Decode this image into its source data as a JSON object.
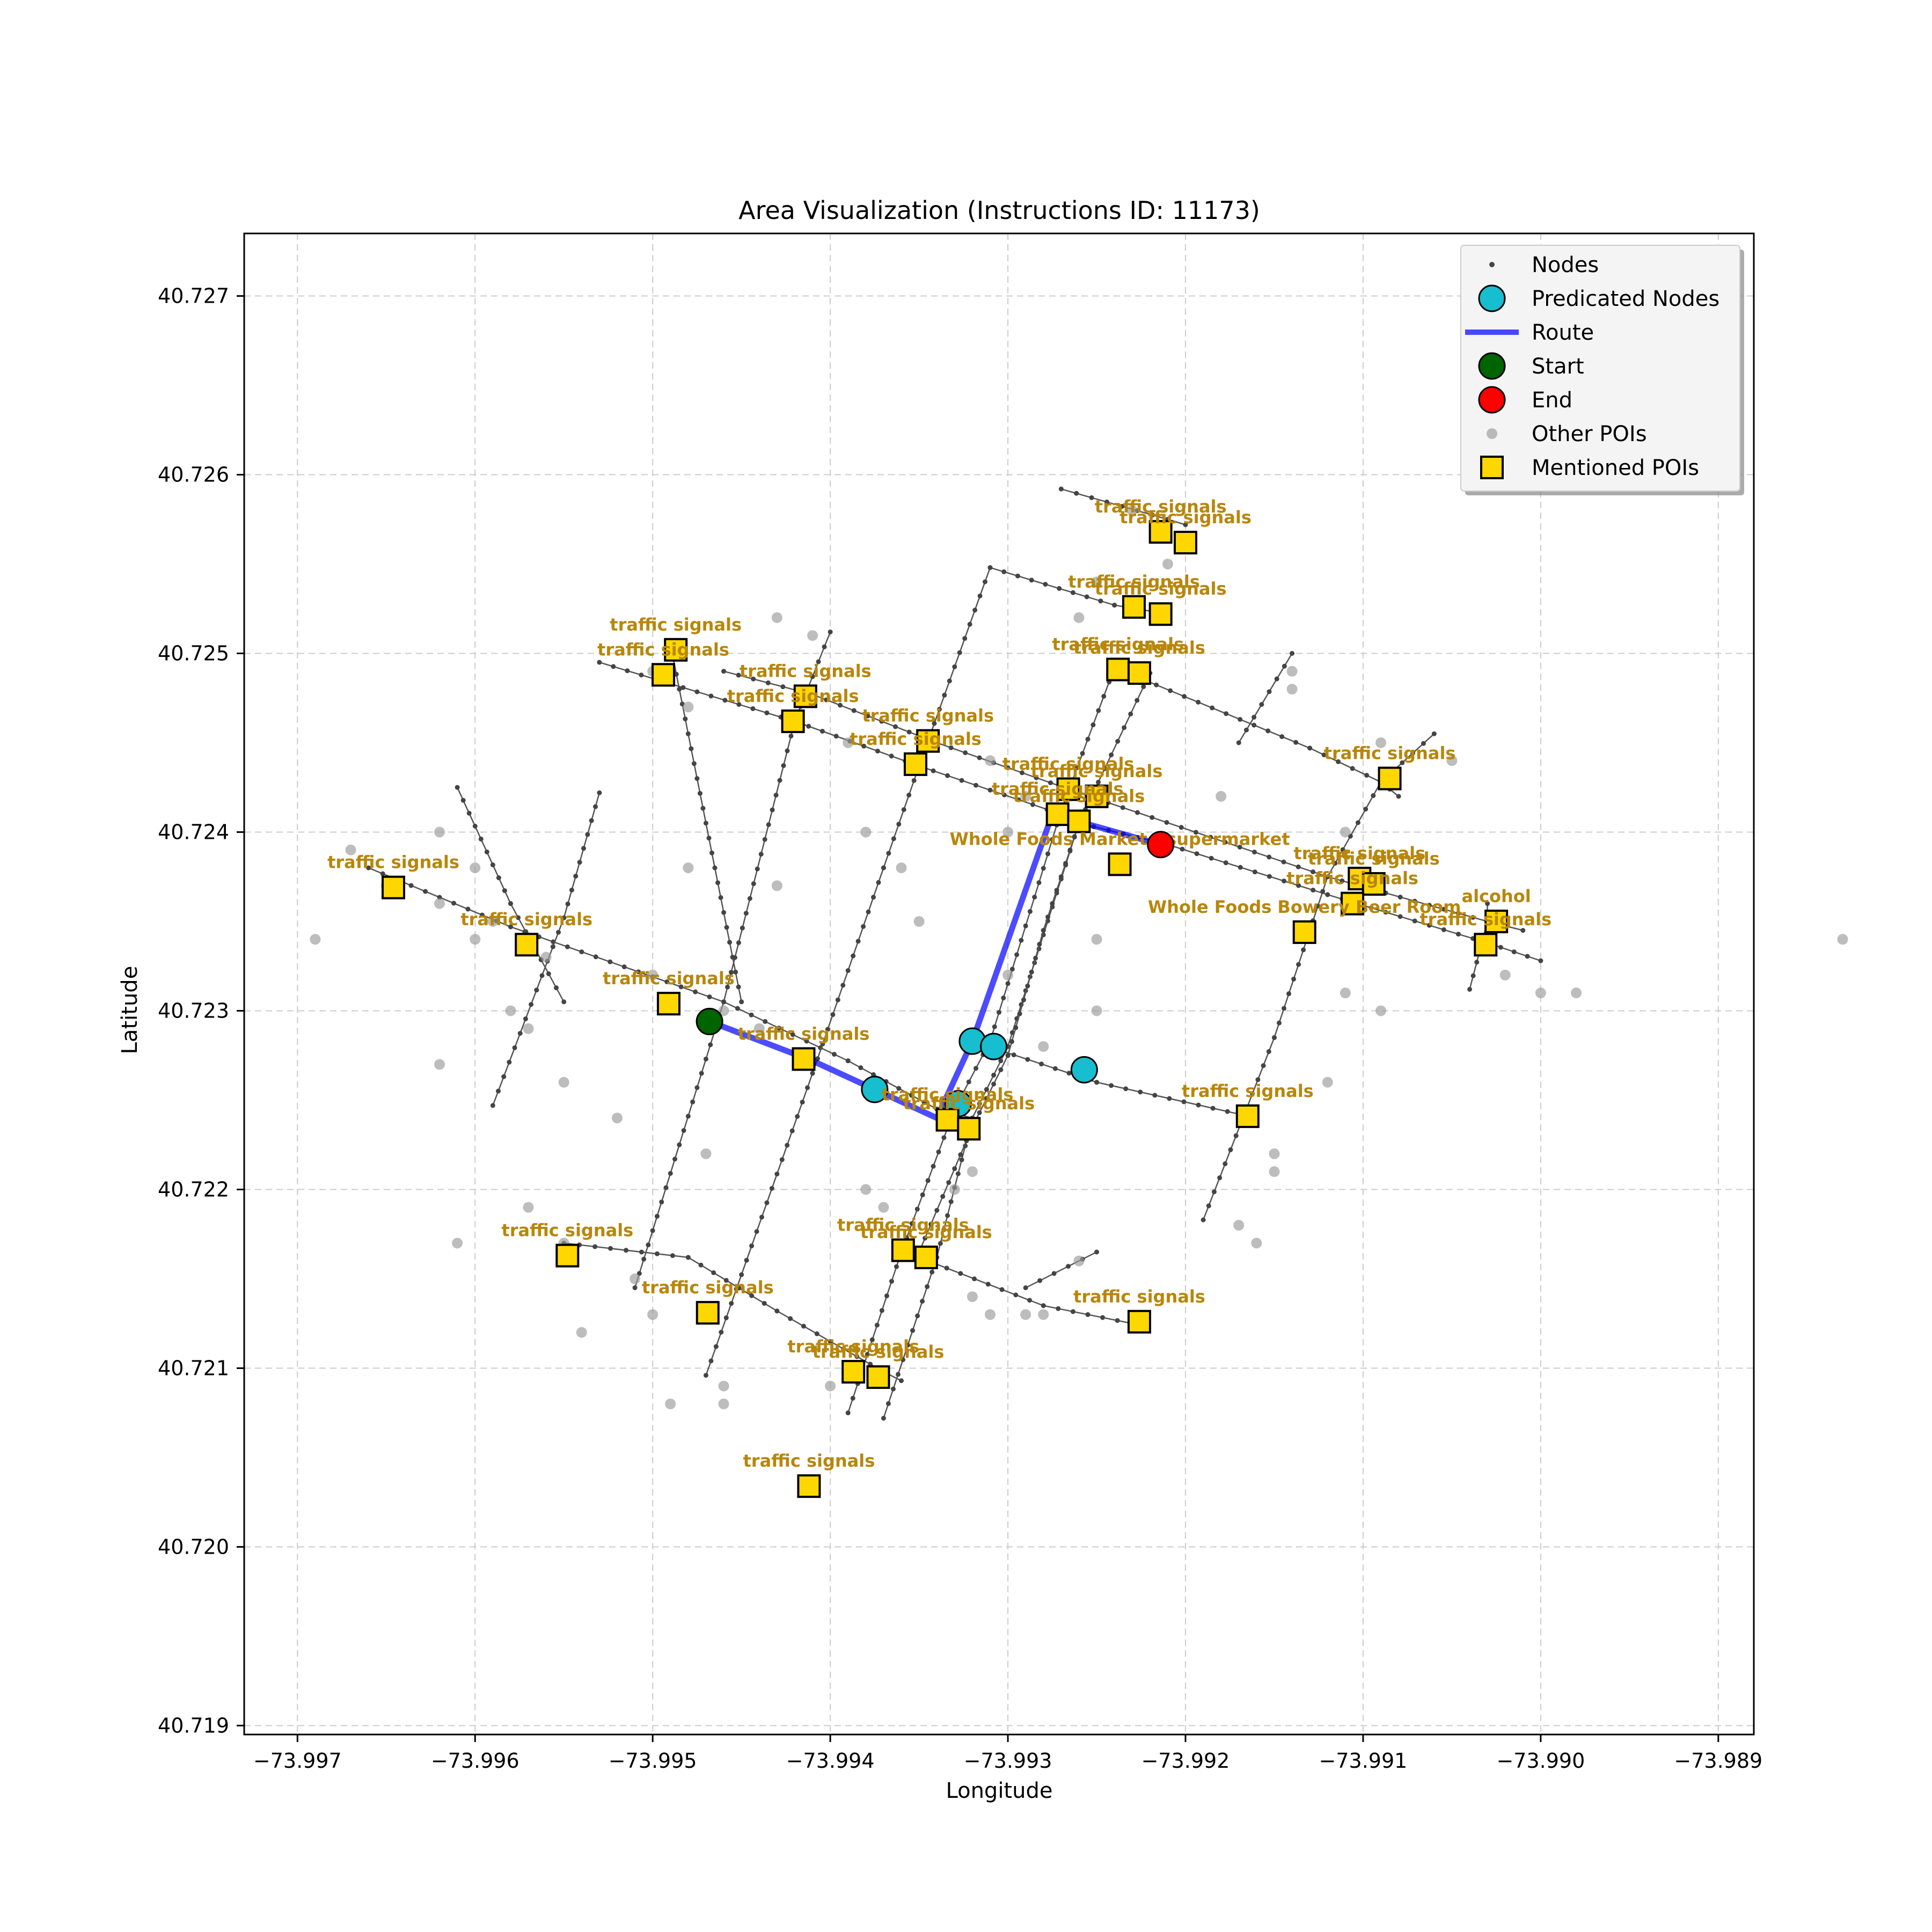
{
  "chart_data": {
    "type": "scatter",
    "title": "Area Visualization (Instructions ID: 11173)",
    "xlabel": "Longitude",
    "ylabel": "Latitude",
    "xlim": [
      -73.9973,
      -73.9888
    ],
    "ylim": [
      40.71895,
      40.72735
    ],
    "grid": true,
    "legend_position": "upper right",
    "x_ticks": [
      -73.997,
      -73.996,
      -73.995,
      -73.994,
      -73.993,
      -73.992,
      -73.991,
      -73.99,
      -73.989
    ],
    "x_tick_labels": [
      "−73.997",
      "−73.996",
      "−73.995",
      "−73.994",
      "−73.993",
      "−73.992",
      "−73.991",
      "−73.990",
      "−73.989"
    ],
    "y_ticks": [
      40.719,
      40.72,
      40.721,
      40.722,
      40.723,
      40.724,
      40.725,
      40.726,
      40.727
    ],
    "y_tick_labels": [
      "40.719",
      "40.720",
      "40.721",
      "40.722",
      "40.723",
      "40.724",
      "40.725",
      "40.726",
      "40.727"
    ],
    "colors": {
      "nodes": "#444444",
      "predicated": "#17becf",
      "route": "#0000ff",
      "start": "#006400",
      "end": "#ff0000",
      "other_poi": "#999999",
      "mentioned_poi": "#ffd700",
      "poi_label": "#b8860b"
    },
    "legend": [
      {
        "label": "Nodes",
        "marker": "small-dot"
      },
      {
        "label": "Predicated Nodes",
        "marker": "cyan-circle"
      },
      {
        "label": "Route",
        "marker": "blue-line"
      },
      {
        "label": "Start",
        "marker": "green-circle"
      },
      {
        "label": "End",
        "marker": "red-circle"
      },
      {
        "label": "Other POIs",
        "marker": "gray-dot"
      },
      {
        "label": "Mentioned POIs",
        "marker": "gold-square"
      }
    ],
    "streets": [
      [
        [
          -73.9966,
          40.7238
        ],
        [
          -73.9958,
          40.72347
        ],
        [
          -73.9946,
          40.72305
        ],
        [
          -73.9939,
          40.72272
        ],
        [
          -73.9934,
          40.72245
        ],
        [
          -73.9932,
          40.7224
        ]
      ],
      [
        [
          -73.9932,
          40.72283
        ],
        [
          -73.9925,
          40.7226
        ],
        [
          -73.9916,
          40.7224
        ]
      ],
      [
        [
          -73.9953,
          40.72495
        ],
        [
          -73.9942,
          40.72462
        ],
        [
          -73.9935,
          40.72437
        ],
        [
          -73.9927,
          40.7241
        ],
        [
          -73.9926,
          40.72405
        ],
        [
          -73.9921,
          40.72393
        ],
        [
          -73.9912,
          40.72365
        ],
        [
          -73.9903,
          40.72338
        ],
        [
          -73.99,
          40.72328
        ]
      ],
      [
        [
          -73.9946,
          40.7249
        ],
        [
          -73.9941,
          40.72477
        ],
        [
          -73.9934,
          40.7245
        ],
        [
          -73.9926,
          40.72422
        ],
        [
          -73.9912,
          40.72375
        ],
        [
          -73.9903,
          40.7235
        ],
        [
          -73.9901,
          40.72345
        ]
      ],
      [
        [
          -73.9931,
          40.72548
        ],
        [
          -73.9924,
          40.72527
        ],
        [
          -73.9921,
          40.72522
        ]
      ],
      [
        [
          -73.9924,
          40.72492
        ],
        [
          -73.9913,
          40.72447
        ],
        [
          -73.9909,
          40.72428
        ],
        [
          -73.9908,
          40.7242
        ]
      ],
      [
        [
          -73.9955,
          40.7217
        ],
        [
          -73.9948,
          40.72162
        ],
        [
          -73.9943,
          40.72132
        ],
        [
          -73.9937,
          40.72098
        ],
        [
          -73.9936,
          40.72093
        ]
      ],
      [
        [
          -73.9936,
          40.72165
        ],
        [
          -73.9935,
          40.72162
        ],
        [
          -73.9928,
          40.72135
        ],
        [
          -73.9923,
          40.72125
        ]
      ],
      [
        [
          -73.9927,
          40.72592
        ],
        [
          -73.9921,
          40.72575
        ],
        [
          -73.992,
          40.72572
        ]
      ],
      [
        [
          -73.9959,
          40.72247
        ],
        [
          -73.9955,
          40.72352
        ],
        [
          -73.9953,
          40.72422
        ]
      ],
      [
        [
          -73.9947,
          40.72096
        ],
        [
          -73.9941,
          40.72265
        ],
        [
          -73.9937,
          40.7238
        ],
        [
          -73.9935,
          40.72437
        ],
        [
          -73.9931,
          40.72548
        ]
      ],
      [
        [
          -73.9951,
          40.72145
        ],
        [
          -73.9946,
          40.72305
        ],
        [
          -73.9942,
          40.72462
        ],
        [
          -73.994,
          40.72512
        ]
      ],
      [
        [
          -73.9939,
          40.72075
        ],
        [
          -73.9936,
          40.72165
        ],
        [
          -73.9933,
          40.72245
        ],
        [
          -73.9931,
          40.72283
        ],
        [
          -73.9927,
          40.72412
        ],
        [
          -73.9924,
          40.72492
        ]
      ],
      [
        [
          -73.9937,
          40.72072
        ],
        [
          -73.9934,
          40.72162
        ],
        [
          -73.9932,
          40.7224
        ],
        [
          -73.993,
          40.7228
        ],
        [
          -73.9926,
          40.72405
        ],
        [
          -73.9922,
          40.72489
        ]
      ],
      [
        [
          -73.9935,
          40.72165
        ],
        [
          -73.9932,
          40.72235
        ],
        [
          -73.993,
          40.72275
        ],
        [
          -73.9928,
          40.72345
        ],
        [
          -73.9926,
          40.72405
        ]
      ],
      [
        [
          -73.9919,
          40.72183
        ],
        [
          -73.9915,
          40.72285
        ],
        [
          -73.9912,
          40.72375
        ],
        [
          -73.9909,
          40.72428
        ],
        [
          -73.9906,
          40.72455
        ]
      ],
      [
        [
          -73.9904,
          40.72312
        ],
        [
          -73.9903,
          40.7235
        ],
        [
          -73.9903,
          40.7236
        ]
      ],
      [
        [
          -73.9961,
          40.72425
        ],
        [
          -73.9958,
          40.7236
        ],
        [
          -73.9955,
          40.72305
        ]
      ],
      [
        [
          -73.9949,
          40.72505
        ],
        [
          -73.9945,
          40.72305
        ]
      ],
      [
        [
          -73.9917,
          40.7245
        ],
        [
          -73.9914,
          40.725
        ]
      ],
      [
        [
          -73.9925,
          40.72165
        ],
        [
          -73.9929,
          40.72145
        ]
      ]
    ],
    "route": [
      [
        -73.99468,
        40.72294
      ],
      [
        -73.9941,
        40.72272
      ],
      [
        -73.99375,
        40.72256
      ],
      [
        -73.9934,
        40.7224
      ],
      [
        -73.9932,
        40.72283
      ],
      [
        -73.99275,
        40.7241
      ],
      [
        -73.99214,
        40.72393
      ]
    ],
    "start": [
      -73.99468,
      40.72294
    ],
    "end": [
      -73.99214,
      40.72393
    ],
    "predicated_nodes": [
      [
        -73.99375,
        40.72256
      ],
      [
        -73.9932,
        40.72283
      ],
      [
        -73.99308,
        40.7228
      ],
      [
        -73.99257,
        40.72267
      ],
      [
        -73.99328,
        40.72248
      ]
    ],
    "other_pois": [
      [
        -73.9969,
        40.7234
      ],
      [
        -73.9967,
        40.7239
      ],
      [
        -73.9965,
        40.7237
      ],
      [
        -73.9962,
        40.724
      ],
      [
        -73.9962,
        40.7236
      ],
      [
        -73.996,
        40.7238
      ],
      [
        -73.9959,
        40.7235
      ],
      [
        -73.9956,
        40.7233
      ],
      [
        -73.9955,
        40.7226
      ],
      [
        -73.9952,
        40.7224
      ],
      [
        -73.995,
        40.7232
      ],
      [
        -73.9948,
        40.7238
      ],
      [
        -73.9946,
        40.723
      ],
      [
        -73.9944,
        40.7229
      ],
      [
        -73.9943,
        40.7237
      ],
      [
        -73.9938,
        40.724
      ],
      [
        -73.9936,
        40.7238
      ],
      [
        -73.9935,
        40.7235
      ],
      [
        -73.993,
        40.7232
      ],
      [
        -73.993,
        40.724
      ],
      [
        -73.9928,
        40.7228
      ],
      [
        -73.9925,
        40.723
      ],
      [
        -73.9925,
        40.7234
      ],
      [
        -73.9929,
        40.7242
      ],
      [
        -73.9931,
        40.7244
      ],
      [
        -73.9948,
        40.7247
      ],
      [
        -73.995,
        40.7249
      ],
      [
        -73.9943,
        40.7252
      ],
      [
        -73.9941,
        40.7251
      ],
      [
        -73.9939,
        40.7245
      ],
      [
        -73.9926,
        40.7252
      ],
      [
        -73.9925,
        40.7254
      ],
      [
        -73.9923,
        40.7258
      ],
      [
        -73.9921,
        40.7255
      ],
      [
        -73.9918,
        40.7242
      ],
      [
        -73.9914,
        40.7249
      ],
      [
        -73.9914,
        40.7248
      ],
      [
        -73.9911,
        40.724
      ],
      [
        -73.9909,
        40.7245
      ],
      [
        -73.9905,
        40.7244
      ],
      [
        -73.9911,
        40.7231
      ],
      [
        -73.9909,
        40.723
      ],
      [
        -73.9902,
        40.7232
      ],
      [
        -73.99,
        40.7231
      ],
      [
        -73.9898,
        40.7231
      ],
      [
        -73.9883,
        40.7234
      ],
      [
        -73.9915,
        40.7222
      ],
      [
        -73.9915,
        40.7221
      ],
      [
        -73.9912,
        40.7226
      ],
      [
        -73.9916,
        40.7217
      ],
      [
        -73.9917,
        40.7218
      ],
      [
        -73.9957,
        40.7219
      ],
      [
        -73.9955,
        40.7217
      ],
      [
        -73.9954,
        40.7212
      ],
      [
        -73.9951,
        40.7215
      ],
      [
        -73.995,
        40.7213
      ],
      [
        -73.9946,
        40.7209
      ],
      [
        -73.9946,
        40.7208
      ],
      [
        -73.994,
        40.7209
      ],
      [
        -73.9949,
        40.7208
      ],
      [
        -73.9947,
        40.7222
      ],
      [
        -73.9938,
        40.722
      ],
      [
        -73.9937,
        40.7219
      ],
      [
        -73.9932,
        40.7214
      ],
      [
        -73.9931,
        40.7213
      ],
      [
        -73.9928,
        40.7213
      ],
      [
        -73.9926,
        40.7216
      ],
      [
        -73.9932,
        40.7221
      ],
      [
        -73.9929,
        40.7213
      ],
      [
        -73.9933,
        40.722
      ],
      [
        -73.9961,
        40.7217
      ],
      [
        -73.9962,
        40.7227
      ],
      [
        -73.996,
        40.7234
      ],
      [
        -73.9958,
        40.723
      ],
      [
        -73.9957,
        40.7229
      ]
    ],
    "mentioned_pois": [
      {
        "label": "traffic signals",
        "x": -73.99646,
        "y": 40.72369
      },
      {
        "label": "traffic signals",
        "x": -73.99571,
        "y": 40.72337
      },
      {
        "label": "traffic signals",
        "x": -73.99491,
        "y": 40.72304
      },
      {
        "label": "traffic signals",
        "x": -73.99415,
        "y": 40.72273
      },
      {
        "label": "traffic signals",
        "x": -73.99334,
        "y": 40.72239
      },
      {
        "label": "traffic signals",
        "x": -73.99322,
        "y": 40.72234
      },
      {
        "label": "traffic signals",
        "x": -73.99165,
        "y": 40.72241
      },
      {
        "label": "traffic signals",
        "x": -73.99494,
        "y": 40.72488
      },
      {
        "label": "traffic signals",
        "x": -73.99487,
        "y": 40.72502
      },
      {
        "label": "traffic signals",
        "x": -73.99421,
        "y": 40.72462
      },
      {
        "label": "traffic signals",
        "x": -73.99414,
        "y": 40.72476
      },
      {
        "label": "traffic signals",
        "x": -73.99352,
        "y": 40.72438
      },
      {
        "label": "traffic signals",
        "x": -73.99345,
        "y": 40.72451
      },
      {
        "label": "traffic signals",
        "x": -73.99272,
        "y": 40.7241
      },
      {
        "label": "traffic signals",
        "x": -73.99266,
        "y": 40.72424
      },
      {
        "label": "traffic signals",
        "x": -73.9926,
        "y": 40.72406
      },
      {
        "label": "traffic signals",
        "x": -73.9925,
        "y": 40.7242
      },
      {
        "label": "traffic signals",
        "x": -73.99238,
        "y": 40.72491
      },
      {
        "label": "traffic signals",
        "x": -73.99226,
        "y": 40.72489
      },
      {
        "label": "traffic signals",
        "x": -73.99229,
        "y": 40.72526
      },
      {
        "label": "traffic signals",
        "x": -73.99214,
        "y": 40.72522
      },
      {
        "label": "traffic signals",
        "x": -73.99214,
        "y": 40.72568
      },
      {
        "label": "traffic signals",
        "x": -73.992,
        "y": 40.72562
      },
      {
        "label": "traffic signals",
        "x": -73.99085,
        "y": 40.7243
      },
      {
        "label": "traffic signals",
        "x": -73.99102,
        "y": 40.72374
      },
      {
        "label": "traffic signals",
        "x": -73.99094,
        "y": 40.72371
      },
      {
        "label": "traffic signals",
        "x": -73.99106,
        "y": 40.7236
      },
      {
        "label": "traffic signals",
        "x": -73.99031,
        "y": 40.72337
      },
      {
        "label": "alcohol",
        "x": -73.99025,
        "y": 40.7235
      },
      {
        "label": "Whole Foods Market - supermarket",
        "x": -73.99237,
        "y": 40.72382
      },
      {
        "label": "Whole Foods Bowery Beer Room",
        "x": -73.99133,
        "y": 40.72344
      },
      {
        "label": "traffic signals",
        "x": -73.99548,
        "y": 40.72163
      },
      {
        "label": "traffic signals",
        "x": -73.99469,
        "y": 40.72131
      },
      {
        "label": "traffic signals",
        "x": -73.99359,
        "y": 40.72166
      },
      {
        "label": "traffic signals",
        "x": -73.99346,
        "y": 40.72162
      },
      {
        "label": "traffic signals",
        "x": -73.99226,
        "y": 40.72126
      },
      {
        "label": "traffic signals",
        "x": -73.99387,
        "y": 40.72098
      },
      {
        "label": "traffic signals",
        "x": -73.99373,
        "y": 40.72095
      },
      {
        "label": "traffic signals",
        "x": -73.99412,
        "y": 40.72034
      }
    ]
  }
}
